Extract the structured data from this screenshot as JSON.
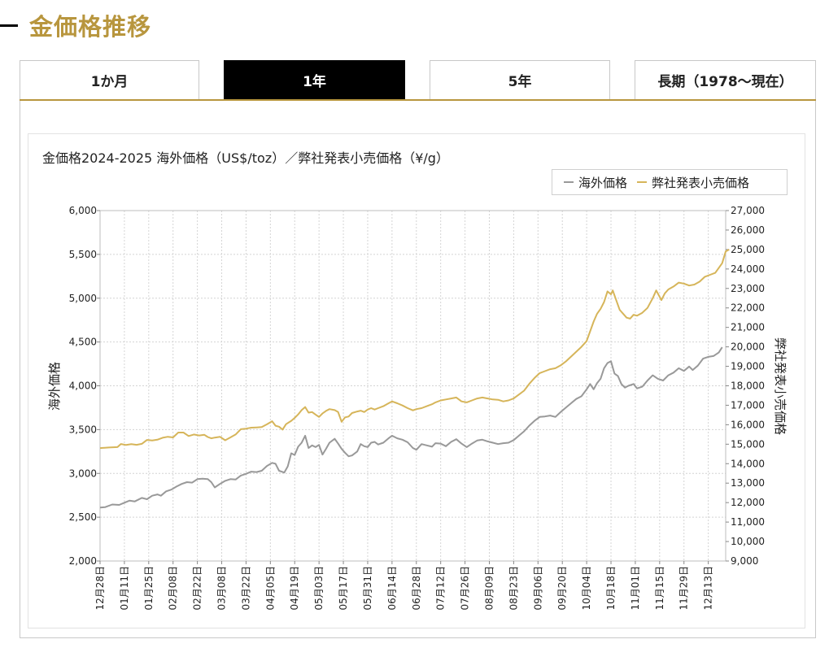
{
  "page": {
    "title": "金価格推移"
  },
  "tabs": [
    {
      "label": "1か月",
      "active": false
    },
    {
      "label": "1年",
      "active": true
    },
    {
      "label": "5年",
      "active": false
    },
    {
      "label": "長期（1978〜現在）",
      "active": false
    }
  ],
  "colors": {
    "accent": "#b8963e",
    "overseas": "#999999",
    "retail": "#d6b55a",
    "active_tab": "#000000"
  },
  "chart_data": {
    "type": "line",
    "title": "金価格2024-2025 海外価格（US$/toz）／弊社発表小売価格（¥/g）",
    "ylabel_left": "海外価格",
    "ylabel_right": "弊社発表小売価格",
    "ylim_left": [
      2000,
      6000
    ],
    "ylim_right": [
      9000,
      27000
    ],
    "yticks_left": [
      "6,000",
      "5,500",
      "5,000",
      "4,500",
      "4,000",
      "3,500",
      "3,000",
      "2,500",
      "2,000"
    ],
    "yticks_right": [
      "27,000",
      "26,000",
      "25,000",
      "24,000",
      "23,000",
      "22,000",
      "21,000",
      "20,000",
      "19,000",
      "18,000",
      "17,000",
      "16,000",
      "15,000",
      "14,000",
      "13,000",
      "12,000",
      "11,000",
      "10,000",
      "9,000"
    ],
    "x_range": [
      0,
      360
    ],
    "xticks": [
      {
        "label": "12月28日",
        "day": 0
      },
      {
        "label": "01月11日",
        "day": 14
      },
      {
        "label": "01月25日",
        "day": 28
      },
      {
        "label": "02月08日",
        "day": 42
      },
      {
        "label": "02月22日",
        "day": 56
      },
      {
        "label": "03月08日",
        "day": 70
      },
      {
        "label": "03月22日",
        "day": 84
      },
      {
        "label": "04月05日",
        "day": 98
      },
      {
        "label": "04月19日",
        "day": 112
      },
      {
        "label": "05月03日",
        "day": 126
      },
      {
        "label": "05月17日",
        "day": 140
      },
      {
        "label": "05月31日",
        "day": 154
      },
      {
        "label": "06月14日",
        "day": 168
      },
      {
        "label": "06月28日",
        "day": 182
      },
      {
        "label": "07月12日",
        "day": 196
      },
      {
        "label": "07月26日",
        "day": 210
      },
      {
        "label": "08月09日",
        "day": 224
      },
      {
        "label": "08月23日",
        "day": 238
      },
      {
        "label": "09月06日",
        "day": 252
      },
      {
        "label": "09月20日",
        "day": 266
      },
      {
        "label": "10月04日",
        "day": 280
      },
      {
        "label": "10月18日",
        "day": 294
      },
      {
        "label": "11月01日",
        "day": 308
      },
      {
        "label": "11月15日",
        "day": 322
      },
      {
        "label": "11月29日",
        "day": 336
      },
      {
        "label": "12月13日",
        "day": 350
      }
    ],
    "series": [
      {
        "name": "海外価格",
        "axis": "left",
        "points": [
          [
            0,
            2610
          ],
          [
            3,
            2615
          ],
          [
            7,
            2645
          ],
          [
            11,
            2640
          ],
          [
            14,
            2665
          ],
          [
            17,
            2690
          ],
          [
            20,
            2680
          ],
          [
            24,
            2720
          ],
          [
            27,
            2705
          ],
          [
            30,
            2745
          ],
          [
            33,
            2760
          ],
          [
            35,
            2745
          ],
          [
            38,
            2795
          ],
          [
            41,
            2815
          ],
          [
            44,
            2850
          ],
          [
            47,
            2880
          ],
          [
            50,
            2900
          ],
          [
            53,
            2895
          ],
          [
            56,
            2935
          ],
          [
            59,
            2940
          ],
          [
            62,
            2935
          ],
          [
            64,
            2900
          ],
          [
            66,
            2840
          ],
          [
            69,
            2880
          ],
          [
            72,
            2915
          ],
          [
            75,
            2935
          ],
          [
            78,
            2930
          ],
          [
            81,
            2975
          ],
          [
            84,
            2995
          ],
          [
            87,
            3020
          ],
          [
            90,
            3015
          ],
          [
            93,
            3030
          ],
          [
            96,
            3085
          ],
          [
            99,
            3120
          ],
          [
            101,
            3110
          ],
          [
            103,
            3030
          ],
          [
            106,
            3010
          ],
          [
            108,
            3080
          ],
          [
            110,
            3230
          ],
          [
            112,
            3210
          ],
          [
            114,
            3305
          ],
          [
            116,
            3350
          ],
          [
            118,
            3430
          ],
          [
            120,
            3290
          ],
          [
            122,
            3320
          ],
          [
            124,
            3300
          ],
          [
            126,
            3325
          ],
          [
            128,
            3215
          ],
          [
            130,
            3280
          ],
          [
            132,
            3350
          ],
          [
            135,
            3395
          ],
          [
            137,
            3340
          ],
          [
            139,
            3280
          ],
          [
            141,
            3235
          ],
          [
            143,
            3195
          ],
          [
            145,
            3205
          ],
          [
            148,
            3250
          ],
          [
            150,
            3335
          ],
          [
            152,
            3310
          ],
          [
            154,
            3300
          ],
          [
            156,
            3350
          ],
          [
            158,
            3360
          ],
          [
            160,
            3330
          ],
          [
            163,
            3350
          ],
          [
            166,
            3400
          ],
          [
            168,
            3430
          ],
          [
            171,
            3400
          ],
          [
            174,
            3385
          ],
          [
            177,
            3355
          ],
          [
            180,
            3290
          ],
          [
            182,
            3270
          ],
          [
            185,
            3335
          ],
          [
            188,
            3320
          ],
          [
            191,
            3305
          ],
          [
            193,
            3345
          ],
          [
            196,
            3340
          ],
          [
            199,
            3310
          ],
          [
            202,
            3360
          ],
          [
            205,
            3390
          ],
          [
            208,
            3340
          ],
          [
            211,
            3300
          ],
          [
            214,
            3340
          ],
          [
            217,
            3375
          ],
          [
            220,
            3385
          ],
          [
            223,
            3365
          ],
          [
            226,
            3350
          ],
          [
            229,
            3335
          ],
          [
            232,
            3345
          ],
          [
            235,
            3350
          ],
          [
            238,
            3380
          ],
          [
            241,
            3430
          ],
          [
            244,
            3480
          ],
          [
            247,
            3545
          ],
          [
            250,
            3600
          ],
          [
            253,
            3645
          ],
          [
            256,
            3650
          ],
          [
            259,
            3660
          ],
          [
            262,
            3645
          ],
          [
            265,
            3700
          ],
          [
            268,
            3750
          ],
          [
            271,
            3800
          ],
          [
            274,
            3850
          ],
          [
            277,
            3880
          ],
          [
            280,
            3960
          ],
          [
            282,
            4020
          ],
          [
            284,
            3960
          ],
          [
            286,
            4030
          ],
          [
            288,
            4080
          ],
          [
            290,
            4200
          ],
          [
            292,
            4260
          ],
          [
            294,
            4280
          ],
          [
            296,
            4140
          ],
          [
            298,
            4110
          ],
          [
            300,
            4020
          ],
          [
            302,
            3980
          ],
          [
            304,
            4000
          ],
          [
            307,
            4020
          ],
          [
            309,
            3970
          ],
          [
            312,
            3990
          ],
          [
            315,
            4060
          ],
          [
            318,
            4120
          ],
          [
            321,
            4080
          ],
          [
            324,
            4060
          ],
          [
            327,
            4120
          ],
          [
            330,
            4150
          ],
          [
            333,
            4200
          ],
          [
            336,
            4170
          ],
          [
            339,
            4220
          ],
          [
            341,
            4180
          ],
          [
            344,
            4230
          ],
          [
            347,
            4310
          ],
          [
            350,
            4330
          ],
          [
            353,
            4340
          ],
          [
            356,
            4380
          ],
          [
            358,
            4440
          ]
        ]
      },
      {
        "name": "弊社発表小売価格",
        "axis": "right",
        "points": [
          [
            0,
            14800
          ],
          [
            5,
            14830
          ],
          [
            10,
            14850
          ],
          [
            12,
            15010
          ],
          [
            15,
            14960
          ],
          [
            18,
            15000
          ],
          [
            21,
            14970
          ],
          [
            24,
            15020
          ],
          [
            27,
            15220
          ],
          [
            30,
            15190
          ],
          [
            33,
            15230
          ],
          [
            36,
            15330
          ],
          [
            39,
            15380
          ],
          [
            42,
            15350
          ],
          [
            45,
            15600
          ],
          [
            48,
            15600
          ],
          [
            51,
            15420
          ],
          [
            54,
            15500
          ],
          [
            57,
            15450
          ],
          [
            60,
            15480
          ],
          [
            62,
            15370
          ],
          [
            64,
            15300
          ],
          [
            66,
            15340
          ],
          [
            69,
            15380
          ],
          [
            72,
            15200
          ],
          [
            75,
            15350
          ],
          [
            78,
            15500
          ],
          [
            81,
            15770
          ],
          [
            84,
            15800
          ],
          [
            87,
            15850
          ],
          [
            90,
            15860
          ],
          [
            93,
            15880
          ],
          [
            96,
            16020
          ],
          [
            99,
            16180
          ],
          [
            101,
            15950
          ],
          [
            103,
            15900
          ],
          [
            105,
            15750
          ],
          [
            107,
            16030
          ],
          [
            110,
            16200
          ],
          [
            112,
            16350
          ],
          [
            114,
            16530
          ],
          [
            116,
            16750
          ],
          [
            118,
            16910
          ],
          [
            120,
            16620
          ],
          [
            122,
            16650
          ],
          [
            124,
            16520
          ],
          [
            126,
            16400
          ],
          [
            128,
            16580
          ],
          [
            130,
            16710
          ],
          [
            132,
            16800
          ],
          [
            135,
            16750
          ],
          [
            137,
            16650
          ],
          [
            139,
            16150
          ],
          [
            141,
            16380
          ],
          [
            143,
            16420
          ],
          [
            145,
            16600
          ],
          [
            148,
            16680
          ],
          [
            150,
            16720
          ],
          [
            152,
            16650
          ],
          [
            154,
            16780
          ],
          [
            156,
            16850
          ],
          [
            158,
            16780
          ],
          [
            160,
            16850
          ],
          [
            163,
            16950
          ],
          [
            166,
            17100
          ],
          [
            168,
            17200
          ],
          [
            171,
            17100
          ],
          [
            174,
            16990
          ],
          [
            177,
            16850
          ],
          [
            180,
            16740
          ],
          [
            182,
            16800
          ],
          [
            185,
            16850
          ],
          [
            188,
            16950
          ],
          [
            191,
            17050
          ],
          [
            193,
            17150
          ],
          [
            196,
            17250
          ],
          [
            199,
            17300
          ],
          [
            202,
            17350
          ],
          [
            205,
            17400
          ],
          [
            208,
            17200
          ],
          [
            211,
            17150
          ],
          [
            214,
            17250
          ],
          [
            217,
            17350
          ],
          [
            220,
            17400
          ],
          [
            223,
            17350
          ],
          [
            226,
            17300
          ],
          [
            229,
            17280
          ],
          [
            232,
            17200
          ],
          [
            235,
            17250
          ],
          [
            238,
            17350
          ],
          [
            241,
            17550
          ],
          [
            244,
            17750
          ],
          [
            247,
            18100
          ],
          [
            250,
            18400
          ],
          [
            253,
            18650
          ],
          [
            256,
            18750
          ],
          [
            259,
            18850
          ],
          [
            262,
            18900
          ],
          [
            265,
            19050
          ],
          [
            268,
            19250
          ],
          [
            271,
            19500
          ],
          [
            274,
            19750
          ],
          [
            277,
            20000
          ],
          [
            280,
            20300
          ],
          [
            282,
            20800
          ],
          [
            284,
            21300
          ],
          [
            286,
            21700
          ],
          [
            288,
            21950
          ],
          [
            290,
            22300
          ],
          [
            292,
            22850
          ],
          [
            294,
            22700
          ],
          [
            295,
            22900
          ],
          [
            297,
            22400
          ],
          [
            299,
            21900
          ],
          [
            301,
            21700
          ],
          [
            303,
            21500
          ],
          [
            305,
            21450
          ],
          [
            307,
            21650
          ],
          [
            309,
            21600
          ],
          [
            312,
            21750
          ],
          [
            315,
            22000
          ],
          [
            318,
            22500
          ],
          [
            320,
            22900
          ],
          [
            323,
            22400
          ],
          [
            325,
            22750
          ],
          [
            327,
            22950
          ],
          [
            330,
            23100
          ],
          [
            333,
            23300
          ],
          [
            336,
            23250
          ],
          [
            339,
            23150
          ],
          [
            342,
            23200
          ],
          [
            345,
            23350
          ],
          [
            348,
            23600
          ],
          [
            351,
            23700
          ],
          [
            354,
            23800
          ],
          [
            356,
            24050
          ],
          [
            358,
            24300
          ],
          [
            360,
            24900
          ],
          [
            362,
            25000
          ]
        ]
      }
    ]
  }
}
